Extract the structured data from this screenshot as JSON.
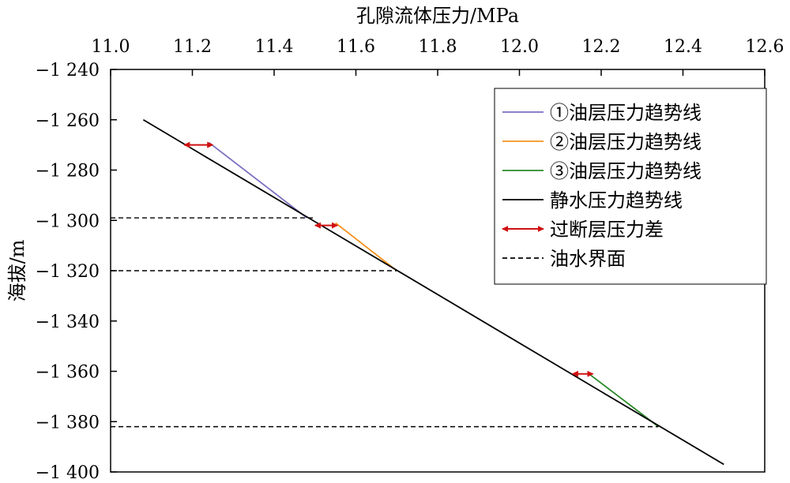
{
  "chart_data": {
    "type": "line",
    "xlabel": "孔隙流体压力/MPa",
    "ylabel": "海拔/m",
    "x_axis_position": "top",
    "xlim": [
      11.0,
      12.6
    ],
    "ylim": [
      -1400,
      -1240
    ],
    "x_ticks": [
      11.0,
      11.2,
      11.4,
      11.6,
      11.8,
      12.0,
      12.2,
      12.4,
      12.6
    ],
    "x_tick_labels": [
      "11.0",
      "11.2",
      "11.4",
      "11.6",
      "11.8",
      "12.0",
      "12.2",
      "12.4",
      "12.6"
    ],
    "y_ticks": [
      -1240,
      -1260,
      -1280,
      -1300,
      -1320,
      -1340,
      -1360,
      -1380,
      -1400
    ],
    "y_tick_labels": [
      "−1 240",
      "−1 260",
      "−1 280",
      "−1 300",
      "−1 320",
      "−1 340",
      "−1 360",
      "−1 380",
      "−1 400"
    ],
    "grid": false,
    "legend_position": "top-right",
    "series": [
      {
        "name": "①油层压力趋势线",
        "color": "#7b70c0",
        "style": "solid",
        "points": [
          [
            11.24,
            -1269
          ],
          [
            11.48,
            -1299
          ]
        ]
      },
      {
        "name": "②油层压力趋势线",
        "color": "#f5921e",
        "style": "solid",
        "points": [
          [
            11.55,
            -1301
          ],
          [
            11.7,
            -1320
          ]
        ]
      },
      {
        "name": "③油层压力趋势线",
        "color": "#2a8a2a",
        "style": "solid",
        "points": [
          [
            12.17,
            -1361
          ],
          [
            12.34,
            -1382
          ]
        ]
      },
      {
        "name": "静水压力趋势线",
        "color": "#000000",
        "style": "solid",
        "points": [
          [
            11.08,
            -1260
          ],
          [
            12.5,
            -1397
          ]
        ]
      },
      {
        "name": "过断层压力差",
        "color": "#d01010",
        "style": "double-arrow",
        "segments": [
          [
            [
              11.18,
              -1270
            ],
            [
              11.25,
              -1270
            ]
          ],
          [
            [
              11.5,
              -1302
            ],
            [
              11.555,
              -1302
            ]
          ],
          [
            [
              12.13,
              -1361
            ],
            [
              12.18,
              -1361
            ]
          ]
        ]
      },
      {
        "name": "油水界面",
        "color": "#000000",
        "style": "dashed",
        "segments": [
          [
            [
              11.0,
              -1299
            ],
            [
              11.5,
              -1299
            ]
          ],
          [
            [
              11.0,
              -1320
            ],
            [
              11.7,
              -1320
            ]
          ],
          [
            [
              11.0,
              -1382
            ],
            [
              12.34,
              -1382
            ]
          ]
        ]
      }
    ]
  }
}
